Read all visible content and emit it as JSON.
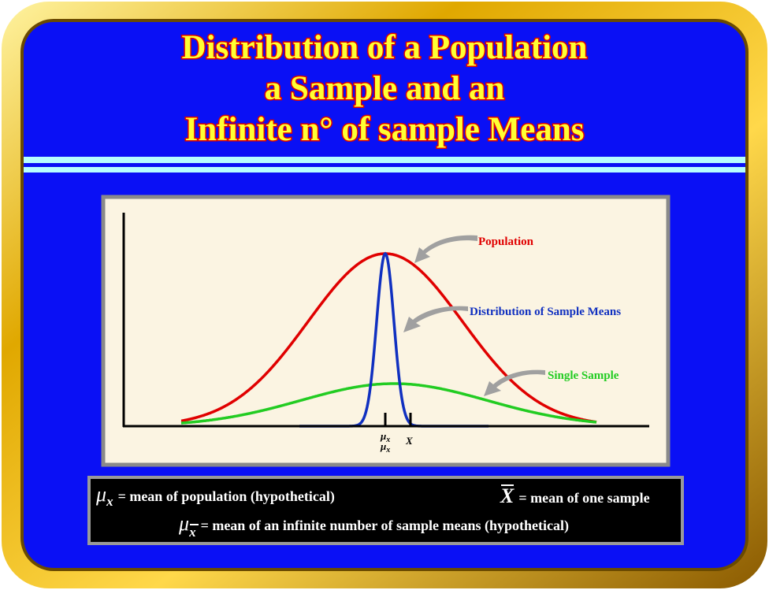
{
  "title": {
    "lines": [
      "Distribution of a Population",
      "a Sample and an",
      "Infinite n° of sample Means"
    ]
  },
  "diagram": {
    "labels": {
      "population": "Population",
      "sample_means": "Distribution of Sample Means",
      "single_sample": "Single Sample"
    },
    "ticks": [
      {
        "symbol": "μ",
        "subscript": "x",
        "symbol2": "μ",
        "subscript2": "x"
      },
      {
        "symbol": "X"
      }
    ]
  },
  "legend": [
    {
      "symbol": "μ",
      "subscript": "x",
      "text": "= mean of population (hypothetical)"
    },
    {
      "symbol": "X",
      "text": "= mean of one sample"
    },
    {
      "symbol": "μ",
      "subscript": "x",
      "text": "= mean of an infinite number of sample means (hypothetical)"
    }
  ]
}
